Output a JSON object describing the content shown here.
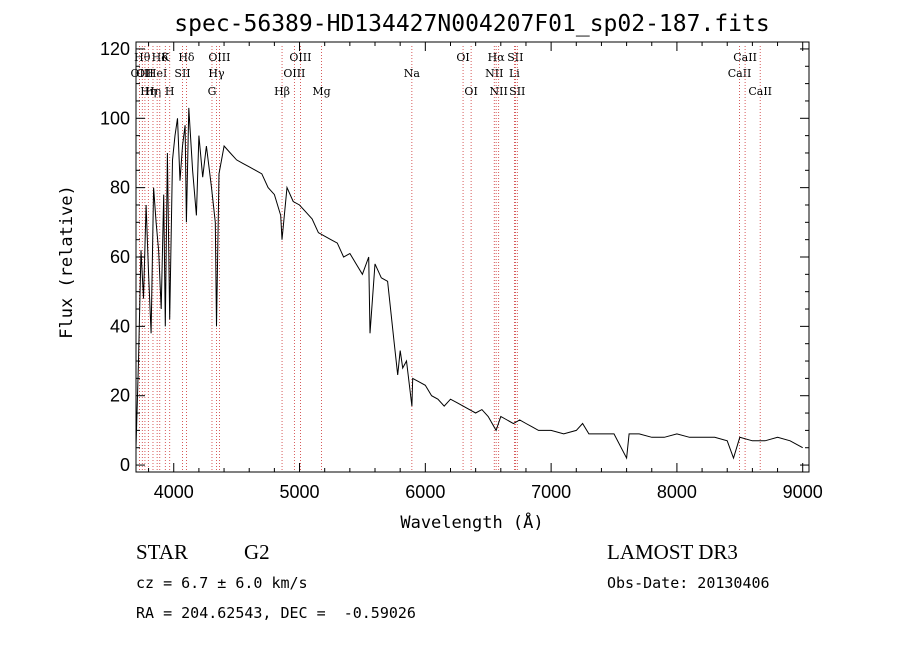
{
  "chart_data": {
    "type": "line",
    "title": "spec-56389-HD134427N004207F01_sp02-187.fits",
    "xlabel": "Wavelength (Å)",
    "ylabel": "Flux (relative)",
    "xlim": [
      3700,
      9050
    ],
    "ylim": [
      -2,
      122
    ],
    "xticks": [
      4000,
      5000,
      6000,
      7000,
      8000,
      9000
    ],
    "yticks": [
      0,
      20,
      40,
      60,
      80,
      100,
      120
    ],
    "grid": false,
    "line_color": "#000000",
    "marker_color": "#cc3333",
    "series": [
      {
        "x": [
          3700,
          3720,
          3740,
          3760,
          3780,
          3800,
          3820,
          3840,
          3860,
          3880,
          3900,
          3920,
          3933,
          3950,
          3968,
          3990,
          4010,
          4030,
          4050,
          4070,
          4090,
          4101,
          4120,
          4150,
          4180,
          4200,
          4230,
          4260,
          4300,
          4330,
          4340,
          4360,
          4400,
          4450,
          4500,
          4550,
          4600,
          4650,
          4700,
          4750,
          4800,
          4850,
          4861,
          4900,
          4950,
          5000,
          5050,
          5100,
          5150,
          5200,
          5250,
          5300,
          5350,
          5400,
          5450,
          5500,
          5550,
          5560,
          5600,
          5650,
          5700,
          5750,
          5780,
          5800,
          5820,
          5850,
          5893,
          5900,
          5950,
          6000,
          6050,
          6100,
          6150,
          6200,
          6250,
          6300,
          6350,
          6400,
          6450,
          6500,
          6563,
          6600,
          6650,
          6700,
          6750,
          6800,
          6850,
          6900,
          6950,
          7000,
          7100,
          7200,
          7250,
          7300,
          7400,
          7500,
          7600,
          7620,
          7700,
          7800,
          7900,
          8000,
          8100,
          8200,
          8300,
          8400,
          8450,
          8500,
          8600,
          8700,
          8800,
          8900,
          9000
        ],
        "y": [
          5,
          30,
          62,
          48,
          75,
          55,
          38,
          80,
          70,
          62,
          45,
          78,
          40,
          90,
          42,
          88,
          95,
          100,
          82,
          92,
          98,
          70,
          103,
          85,
          72,
          95,
          83,
          92,
          80,
          70,
          40,
          84,
          92,
          90,
          88,
          87,
          86,
          85,
          84,
          80,
          78,
          72,
          65,
          80,
          76,
          75,
          73,
          71,
          67,
          66,
          65,
          64,
          60,
          61,
          58,
          55,
          60,
          38,
          58,
          54,
          53,
          36,
          26,
          33,
          28,
          30,
          17,
          25,
          24,
          23,
          20,
          19,
          17,
          19,
          18,
          17,
          16,
          15,
          16,
          14,
          10,
          14,
          13,
          12,
          13,
          12,
          11,
          10,
          10,
          10,
          9,
          10,
          12,
          9,
          9,
          9,
          2,
          9,
          9,
          8,
          8,
          9,
          8,
          8,
          8,
          7,
          2,
          8,
          7,
          7,
          8,
          7,
          5
        ]
      }
    ],
    "line_markers": [
      {
        "wave": 3727,
        "label": "OII",
        "row": 2
      },
      {
        "wave": 3750,
        "label": "Hθ",
        "row": 1
      },
      {
        "wave": 3771,
        "label": "OII",
        "row": 2
      },
      {
        "wave": 3798,
        "label": "Hη",
        "row": 3
      },
      {
        "wave": 3835,
        "label": "Hη",
        "row": 3
      },
      {
        "wave": 3868,
        "label": "HeI",
        "row": 2
      },
      {
        "wave": 3889,
        "label": "Hδ",
        "row": 1
      },
      {
        "wave": 3933,
        "label": "K",
        "row": 1
      },
      {
        "wave": 3968,
        "label": "H",
        "row": 3
      },
      {
        "wave": 4070,
        "label": "SII",
        "row": 2
      },
      {
        "wave": 4101,
        "label": "Hδ",
        "row": 1
      },
      {
        "wave": 4304,
        "label": "G",
        "row": 3
      },
      {
        "wave": 4340,
        "label": "Hγ",
        "row": 2
      },
      {
        "wave": 4363,
        "label": "OIII",
        "row": 1
      },
      {
        "wave": 4861,
        "label": "Hβ",
        "row": 3
      },
      {
        "wave": 4959,
        "label": "OIII",
        "row": 2
      },
      {
        "wave": 5007,
        "label": "OIII",
        "row": 1
      },
      {
        "wave": 5175,
        "label": "Mg",
        "row": 3
      },
      {
        "wave": 5893,
        "label": "Na",
        "row": 2
      },
      {
        "wave": 6300,
        "label": "OI",
        "row": 1
      },
      {
        "wave": 6364,
        "label": "OI",
        "row": 3
      },
      {
        "wave": 6548,
        "label": "NII",
        "row": 2
      },
      {
        "wave": 6563,
        "label": "Hα",
        "row": 1
      },
      {
        "wave": 6583,
        "label": "NII",
        "row": 3
      },
      {
        "wave": 6708,
        "label": "Li",
        "row": 2
      },
      {
        "wave": 6716,
        "label": "SII",
        "row": 1
      },
      {
        "wave": 6731,
        "label": "SII",
        "row": 3
      },
      {
        "wave": 8498,
        "label": "CaII",
        "row": 2
      },
      {
        "wave": 8542,
        "label": "CaII",
        "row": 1
      },
      {
        "wave": 8662,
        "label": "CaII",
        "row": 3
      }
    ]
  },
  "info": {
    "object_type": "STAR",
    "subclass": "G2",
    "survey": "LAMOST DR3",
    "redshift": "cz = 6.7 ± 6.0 km/s",
    "obs_date": "Obs-Date: 20130406",
    "coords": "RA = 204.62543, DEC =  -0.59026"
  }
}
